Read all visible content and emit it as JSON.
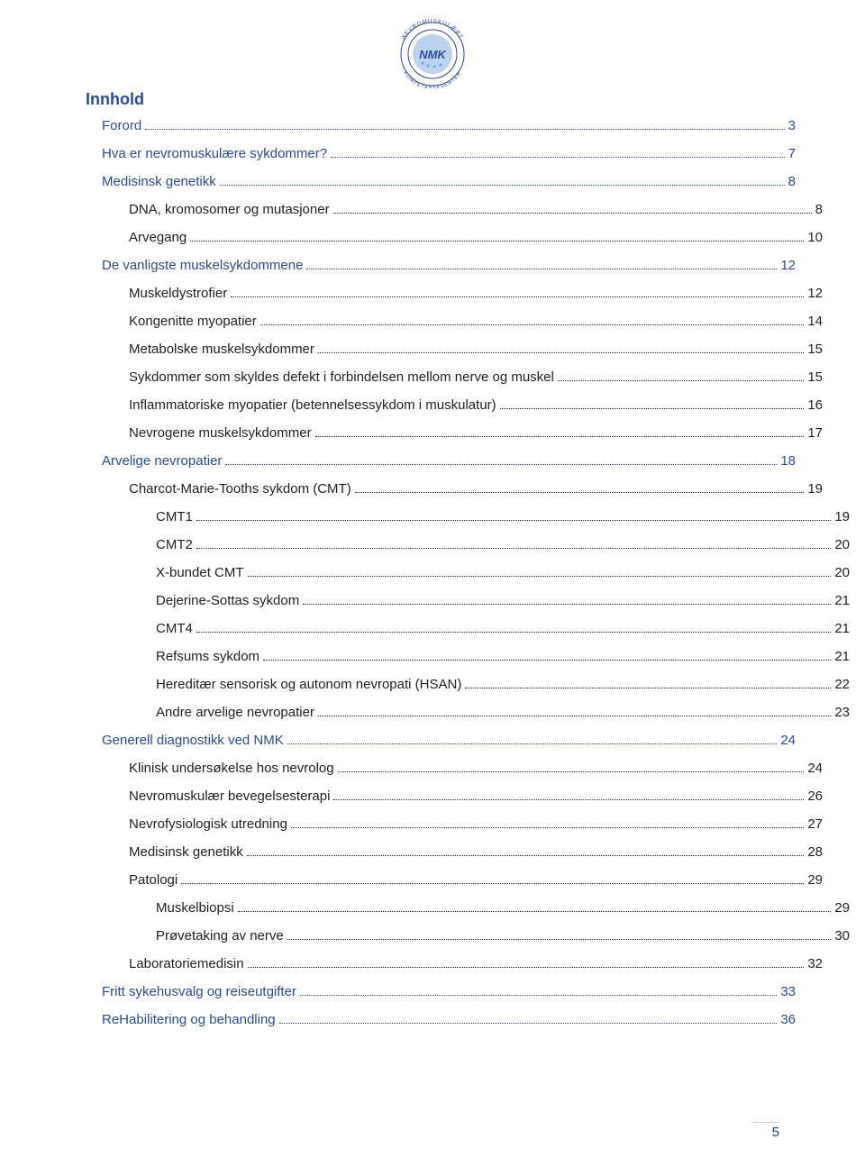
{
  "logo": {
    "outer_text_top": "NEVROMUSKULÆRT",
    "outer_text_bottom": "KOMPETANSESENTER",
    "inner_text": "NMK",
    "ring_color": "#2b4a99",
    "text_color": "#2b4a99",
    "inner_bg": "#bcd3ef"
  },
  "heading": {
    "text": "Innhold",
    "color": "#2b4a99"
  },
  "colors": {
    "link": "#2b4a99",
    "body": "#222222",
    "dot": "#2b4a99",
    "body_dot": "#222222"
  },
  "page_number": "5",
  "toc": [
    {
      "label": "Forord",
      "page": "3",
      "level": 0,
      "color": "link"
    },
    {
      "label": "Hva er nevromuskulære sykdommer?",
      "page": "7",
      "level": 0,
      "color": "link"
    },
    {
      "label": "Medisinsk genetikk",
      "page": "8",
      "level": 0,
      "color": "link"
    },
    {
      "label": "DNA, kromosomer og mutasjoner",
      "page": "8",
      "level": 1,
      "color": "body"
    },
    {
      "label": "Arvegang",
      "page": "10",
      "level": 1,
      "color": "body"
    },
    {
      "label": "De vanligste muskelsykdommene",
      "page": "12",
      "level": 0,
      "color": "link"
    },
    {
      "label": "Muskeldystrofier",
      "page": "12",
      "level": 1,
      "color": "body"
    },
    {
      "label": "Kongenitte myopatier",
      "page": "14",
      "level": 1,
      "color": "body"
    },
    {
      "label": "Metabolske muskelsykdommer",
      "page": "15",
      "level": 1,
      "color": "body"
    },
    {
      "label": "Sykdommer som skyldes defekt i forbindelsen mellom nerve og muskel",
      "page": "15",
      "level": 1,
      "color": "body"
    },
    {
      "label": "Inflammatoriske myopatier (betennelsessykdom i muskulatur)",
      "page": "16",
      "level": 1,
      "color": "body"
    },
    {
      "label": "Nevrogene muskelsykdommer",
      "page": "17",
      "level": 1,
      "color": "body"
    },
    {
      "label": "Arvelige nevropatier",
      "page": "18",
      "level": 0,
      "color": "link"
    },
    {
      "label": "Charcot-Marie-Tooths sykdom (CMT)",
      "page": "19",
      "level": 1,
      "color": "body"
    },
    {
      "label": "CMT1",
      "page": "19",
      "level": 2,
      "color": "body"
    },
    {
      "label": "CMT2",
      "page": "20",
      "level": 2,
      "color": "body"
    },
    {
      "label": "X-bundet CMT",
      "page": "20",
      "level": 2,
      "color": "body"
    },
    {
      "label": "Dejerine-Sottas sykdom",
      "page": "21",
      "level": 2,
      "color": "body"
    },
    {
      "label": "CMT4",
      "page": "21",
      "level": 2,
      "color": "body"
    },
    {
      "label": "Refsums sykdom",
      "page": "21",
      "level": 2,
      "color": "body"
    },
    {
      "label": "Hereditær sensorisk og autonom nevropati (HSAN)",
      "page": "22",
      "level": 2,
      "color": "body"
    },
    {
      "label": "Andre arvelige nevropatier",
      "page": "23",
      "level": 2,
      "color": "body"
    },
    {
      "label": "Generell diagnostikk ved NMK",
      "page": "24",
      "level": 0,
      "color": "link"
    },
    {
      "label": "Klinisk undersøkelse hos nevrolog",
      "page": "24",
      "level": 1,
      "color": "body"
    },
    {
      "label": "Nevromuskulær bevegelsesterapi",
      "page": "26",
      "level": 1,
      "color": "body"
    },
    {
      "label": "Nevrofysiologisk utredning",
      "page": "27",
      "level": 1,
      "color": "body"
    },
    {
      "label": "Medisinsk genetikk",
      "page": "28",
      "level": 1,
      "color": "body"
    },
    {
      "label": "Patologi",
      "page": "29",
      "level": 1,
      "color": "body"
    },
    {
      "label": "Muskelbiopsi",
      "page": "29",
      "level": 2,
      "color": "body"
    },
    {
      "label": "Prøvetaking av nerve",
      "page": "30",
      "level": 2,
      "color": "body"
    },
    {
      "label": "Laboratoriemedisin",
      "page": "32",
      "level": 1,
      "color": "body"
    },
    {
      "label": "Fritt sykehusvalg og reiseutgifter",
      "page": "33",
      "level": 0,
      "color": "link"
    },
    {
      "label": "ReHabilitering og behandling",
      "page": "36",
      "level": 0,
      "color": "link"
    }
  ]
}
